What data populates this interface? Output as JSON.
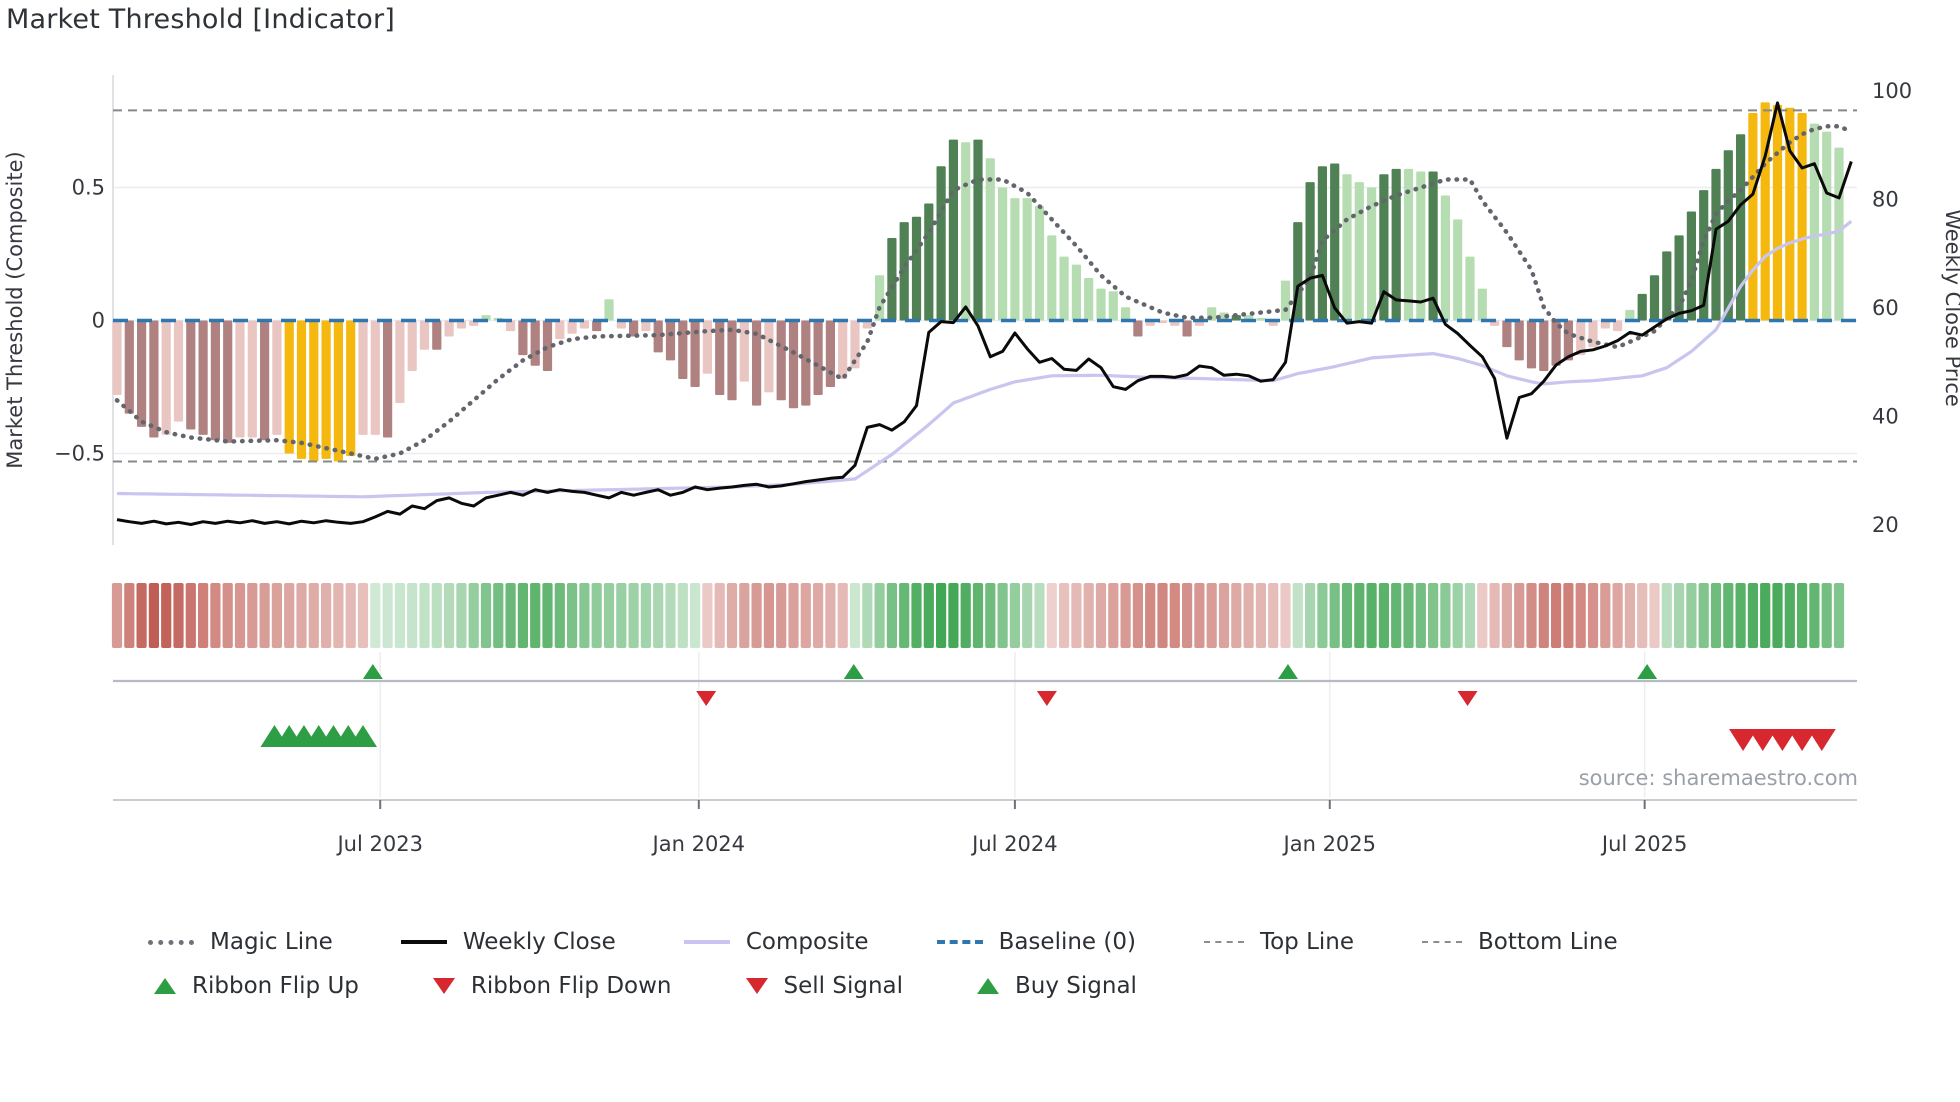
{
  "title": "Market Threshold [Indicator]",
  "source": "source: sharemaestro.com",
  "axes": {
    "left": {
      "title": "Market Threshold (Composite)",
      "ticks": [
        {
          "v": 0.5,
          "label": "0.5"
        },
        {
          "v": 0.0,
          "label": "0"
        },
        {
          "v": -0.5,
          "label": "−0.5"
        }
      ]
    },
    "right": {
      "title": "Weekly Close Price",
      "ticks": [
        {
          "v": 100,
          "label": "100"
        },
        {
          "v": 80,
          "label": "80"
        },
        {
          "v": 60,
          "label": "60"
        },
        {
          "v": 40,
          "label": "40"
        },
        {
          "v": 20,
          "label": "20"
        }
      ]
    },
    "x": {
      "ticks": [
        {
          "week": 21.4,
          "label": "Jul 2023"
        },
        {
          "week": 47.3,
          "label": "Jan 2024"
        },
        {
          "week": 73.0,
          "label": "Jul 2024"
        },
        {
          "week": 98.6,
          "label": "Jan 2025"
        },
        {
          "week": 124.2,
          "label": "Jul 2025"
        }
      ]
    }
  },
  "legend": {
    "row1": [
      {
        "name": "magic-line",
        "label": "Magic Line",
        "swatch": "dotted",
        "color": "#6f7379"
      },
      {
        "name": "weekly-close",
        "label": "Weekly Close",
        "swatch": "line",
        "color": "#0b0b0b"
      },
      {
        "name": "composite",
        "label": "Composite",
        "swatch": "line",
        "color": "#c9c5f0"
      },
      {
        "name": "baseline",
        "label": "Baseline (0)",
        "swatch": "dashed",
        "color": "#2f77b0"
      },
      {
        "name": "top-line",
        "label": "Top Line",
        "swatch": "thin-dashed",
        "color": "#8a8d92"
      },
      {
        "name": "bottom-line",
        "label": "Bottom Line",
        "swatch": "thin-dashed",
        "color": "#8a8d92"
      }
    ],
    "row2": [
      {
        "name": "ribbon-flip-up",
        "label": "Ribbon Flip Up",
        "swatch": "tri-up",
        "color": "#2e9e44"
      },
      {
        "name": "ribbon-flip-down",
        "label": "Ribbon Flip Down",
        "swatch": "tri-down",
        "color": "#d7282f"
      },
      {
        "name": "sell-signal",
        "label": "Sell Signal",
        "swatch": "tri-down",
        "color": "#d7282f"
      },
      {
        "name": "buy-signal",
        "label": "Buy Signal",
        "swatch": "tri-up",
        "color": "#2e9e44"
      }
    ]
  },
  "chart_data": {
    "type": "bar",
    "x_unit": "weekly",
    "n_weeks": 141,
    "left_axis_range": [
      -0.84,
      0.92
    ],
    "right_axis_range": [
      16,
      103
    ],
    "baseline": 0,
    "top_line": 0.79,
    "bottom_line": -0.53,
    "bar_color_legend": {
      "p": "light-pink-negative",
      "m": "mauve-negative",
      "y": "gold-signal",
      "g": "light-green-positive",
      "G": "dark-green-positive"
    },
    "bar_colors": {
      "p": "#eac6c3",
      "m": "#b08181",
      "y": "#f5b80e",
      "g": "#b6ddb2",
      "G": "#4f8155"
    },
    "bars": [
      [
        -0.28,
        "p"
      ],
      [
        -0.35,
        "m"
      ],
      [
        -0.4,
        "m"
      ],
      [
        -0.44,
        "m"
      ],
      [
        -0.43,
        "p"
      ],
      [
        -0.38,
        "p"
      ],
      [
        -0.41,
        "m"
      ],
      [
        -0.43,
        "m"
      ],
      [
        -0.45,
        "m"
      ],
      [
        -0.46,
        "m"
      ],
      [
        -0.44,
        "p"
      ],
      [
        -0.44,
        "p"
      ],
      [
        -0.45,
        "m"
      ],
      [
        -0.43,
        "p"
      ],
      [
        -0.5,
        "y"
      ],
      [
        -0.52,
        "y"
      ],
      [
        -0.53,
        "y"
      ],
      [
        -0.52,
        "y"
      ],
      [
        -0.53,
        "y"
      ],
      [
        -0.51,
        "y"
      ],
      [
        -0.43,
        "p"
      ],
      [
        -0.43,
        "p"
      ],
      [
        -0.44,
        "m"
      ],
      [
        -0.31,
        "p"
      ],
      [
        -0.19,
        "p"
      ],
      [
        -0.11,
        "p"
      ],
      [
        -0.11,
        "m"
      ],
      [
        -0.06,
        "p"
      ],
      [
        -0.03,
        "p"
      ],
      [
        -0.02,
        "p"
      ],
      [
        0.02,
        "g"
      ],
      [
        0.01,
        "g"
      ],
      [
        -0.04,
        "p"
      ],
      [
        -0.13,
        "m"
      ],
      [
        -0.17,
        "m"
      ],
      [
        -0.19,
        "m"
      ],
      [
        -0.07,
        "p"
      ],
      [
        -0.05,
        "p"
      ],
      [
        -0.03,
        "p"
      ],
      [
        -0.04,
        "m"
      ],
      [
        0.08,
        "g"
      ],
      [
        -0.03,
        "p"
      ],
      [
        -0.06,
        "m"
      ],
      [
        -0.04,
        "p"
      ],
      [
        -0.12,
        "m"
      ],
      [
        -0.15,
        "m"
      ],
      [
        -0.22,
        "m"
      ],
      [
        -0.25,
        "m"
      ],
      [
        -0.2,
        "p"
      ],
      [
        -0.28,
        "m"
      ],
      [
        -0.3,
        "m"
      ],
      [
        -0.23,
        "p"
      ],
      [
        -0.32,
        "m"
      ],
      [
        -0.27,
        "p"
      ],
      [
        -0.3,
        "m"
      ],
      [
        -0.33,
        "m"
      ],
      [
        -0.32,
        "m"
      ],
      [
        -0.28,
        "m"
      ],
      [
        -0.25,
        "m"
      ],
      [
        -0.22,
        "p"
      ],
      [
        -0.18,
        "p"
      ],
      [
        -0.03,
        "p"
      ],
      [
        0.17,
        "g"
      ],
      [
        0.31,
        "G"
      ],
      [
        0.37,
        "G"
      ],
      [
        0.39,
        "G"
      ],
      [
        0.44,
        "G"
      ],
      [
        0.58,
        "G"
      ],
      [
        0.68,
        "G"
      ],
      [
        0.67,
        "g"
      ],
      [
        0.68,
        "G"
      ],
      [
        0.61,
        "g"
      ],
      [
        0.5,
        "g"
      ],
      [
        0.46,
        "g"
      ],
      [
        0.46,
        "g"
      ],
      [
        0.43,
        "g"
      ],
      [
        0.32,
        "g"
      ],
      [
        0.24,
        "g"
      ],
      [
        0.21,
        "g"
      ],
      [
        0.16,
        "g"
      ],
      [
        0.12,
        "g"
      ],
      [
        0.11,
        "g"
      ],
      [
        0.05,
        "g"
      ],
      [
        -0.06,
        "m"
      ],
      [
        -0.02,
        "p"
      ],
      [
        -0.01,
        "p"
      ],
      [
        -0.02,
        "p"
      ],
      [
        -0.06,
        "m"
      ],
      [
        -0.02,
        "p"
      ],
      [
        0.05,
        "g"
      ],
      [
        0.03,
        "g"
      ],
      [
        0.02,
        "G"
      ],
      [
        0.02,
        "g"
      ],
      [
        0.01,
        "g"
      ],
      [
        -0.02,
        "p"
      ],
      [
        0.15,
        "g"
      ],
      [
        0.37,
        "G"
      ],
      [
        0.52,
        "G"
      ],
      [
        0.58,
        "G"
      ],
      [
        0.59,
        "G"
      ],
      [
        0.55,
        "g"
      ],
      [
        0.52,
        "g"
      ],
      [
        0.5,
        "g"
      ],
      [
        0.55,
        "G"
      ],
      [
        0.57,
        "G"
      ],
      [
        0.57,
        "g"
      ],
      [
        0.56,
        "g"
      ],
      [
        0.56,
        "G"
      ],
      [
        0.47,
        "g"
      ],
      [
        0.38,
        "g"
      ],
      [
        0.24,
        "g"
      ],
      [
        0.12,
        "g"
      ],
      [
        -0.02,
        "p"
      ],
      [
        -0.1,
        "m"
      ],
      [
        -0.15,
        "m"
      ],
      [
        -0.18,
        "m"
      ],
      [
        -0.19,
        "m"
      ],
      [
        -0.17,
        "m"
      ],
      [
        -0.15,
        "m"
      ],
      [
        -0.13,
        "p"
      ],
      [
        -0.1,
        "p"
      ],
      [
        -0.03,
        "p"
      ],
      [
        -0.04,
        "p"
      ],
      [
        0.04,
        "g"
      ],
      [
        0.1,
        "G"
      ],
      [
        0.17,
        "G"
      ],
      [
        0.26,
        "G"
      ],
      [
        0.32,
        "G"
      ],
      [
        0.41,
        "G"
      ],
      [
        0.49,
        "G"
      ],
      [
        0.57,
        "G"
      ],
      [
        0.64,
        "G"
      ],
      [
        0.7,
        "G"
      ],
      [
        0.78,
        "y"
      ],
      [
        0.82,
        "y"
      ],
      [
        0.81,
        "y"
      ],
      [
        0.8,
        "y"
      ],
      [
        0.78,
        "y"
      ],
      [
        0.74,
        "g"
      ],
      [
        0.71,
        "g"
      ],
      [
        0.65,
        "g"
      ]
    ],
    "weekly_close": [
      21,
      20.6,
      20.3,
      20.7,
      20.2,
      20.5,
      20.1,
      20.6,
      20.3,
      20.7,
      20.4,
      20.8,
      20.3,
      20.6,
      20.2,
      20.7,
      20.4,
      20.8,
      20.5,
      20.3,
      20.6,
      21.5,
      22.5,
      22,
      23.5,
      23,
      24.5,
      25,
      24,
      23.5,
      25,
      25.5,
      26,
      25.5,
      26.5,
      26,
      26.5,
      26.2,
      26,
      25.5,
      25,
      26,
      25.5,
      26,
      26.5,
      25.5,
      26,
      27,
      26.5,
      26.8,
      27,
      27.3,
      27.5,
      27,
      27.2,
      27.6,
      28,
      28.3,
      28.6,
      28.8,
      31,
      38,
      38.5,
      37.5,
      39,
      42,
      55.5,
      57.5,
      57.3,
      60.2,
      56.7,
      51,
      52,
      55.4,
      52.5,
      50,
      50.7,
      48.7,
      48.5,
      50.6,
      49,
      45.5,
      45,
      46.6,
      47.4,
      47.4,
      47.2,
      47.7,
      49.3,
      49,
      47.6,
      47.8,
      47.5,
      46.5,
      46.8,
      50,
      64,
      65.5,
      66,
      60,
      57.2,
      57.5,
      57.2,
      63,
      61.5,
      61.3,
      61.1,
      61.8,
      57,
      55.3,
      53.1,
      51,
      47,
      36,
      43.5,
      44.2,
      46.5,
      49.5,
      51,
      52,
      52.3,
      53,
      54,
      55.5,
      55,
      56.5,
      58,
      59,
      59.5,
      60.5,
      74.5,
      76,
      79,
      81,
      88,
      97.8,
      89,
      85.8,
      86.6,
      81.2,
      80.3,
      87
    ],
    "magic_line_keyframes": [
      [
        0,
        -0.3
      ],
      [
        2,
        -0.38
      ],
      [
        4,
        -0.42
      ],
      [
        6,
        -0.44
      ],
      [
        9,
        -0.455
      ],
      [
        13,
        -0.45
      ],
      [
        15,
        -0.46
      ],
      [
        18,
        -0.49
      ],
      [
        21,
        -0.52
      ],
      [
        23,
        -0.5
      ],
      [
        25,
        -0.45
      ],
      [
        27,
        -0.38
      ],
      [
        29,
        -0.3
      ],
      [
        31,
        -0.22
      ],
      [
        33,
        -0.15
      ],
      [
        35,
        -0.1
      ],
      [
        37,
        -0.07
      ],
      [
        39,
        -0.06
      ],
      [
        44,
        -0.055
      ],
      [
        48,
        -0.04
      ],
      [
        50,
        -0.035
      ],
      [
        52,
        -0.05
      ],
      [
        55,
        -0.12
      ],
      [
        57,
        -0.17
      ],
      [
        59,
        -0.22
      ],
      [
        61,
        -0.08
      ],
      [
        62,
        0.05
      ],
      [
        64,
        0.2
      ],
      [
        66,
        0.33
      ],
      [
        68,
        0.49
      ],
      [
        70,
        0.53
      ],
      [
        72,
        0.53
      ],
      [
        74,
        0.48
      ],
      [
        76,
        0.38
      ],
      [
        78,
        0.28
      ],
      [
        80,
        0.17
      ],
      [
        82,
        0.09
      ],
      [
        85,
        0.03
      ],
      [
        87,
        0.01
      ],
      [
        89,
        0.01
      ],
      [
        91,
        0.02
      ],
      [
        93,
        0.03
      ],
      [
        95,
        0.04
      ],
      [
        97,
        0.16
      ],
      [
        98,
        0.3
      ],
      [
        100,
        0.38
      ],
      [
        102,
        0.43
      ],
      [
        104,
        0.47
      ],
      [
        106,
        0.5
      ],
      [
        108,
        0.53
      ],
      [
        110,
        0.53
      ],
      [
        111,
        0.45
      ],
      [
        113,
        0.33
      ],
      [
        115,
        0.19
      ],
      [
        116,
        0.05
      ],
      [
        117,
        -0.01
      ],
      [
        118,
        -0.05
      ],
      [
        120,
        -0.08
      ],
      [
        122,
        -0.1
      ],
      [
        123,
        -0.08
      ],
      [
        125,
        -0.04
      ],
      [
        126,
        0.01
      ],
      [
        127,
        0.05
      ],
      [
        128,
        0.15
      ],
      [
        129,
        0.3
      ],
      [
        130,
        0.4
      ],
      [
        131,
        0.45
      ],
      [
        132,
        0.49
      ],
      [
        133,
        0.54
      ],
      [
        134,
        0.59
      ],
      [
        135,
        0.63
      ],
      [
        136,
        0.67
      ],
      [
        137,
        0.7
      ],
      [
        138,
        0.72
      ],
      [
        139,
        0.73
      ],
      [
        140,
        0.73
      ],
      [
        141,
        0.71
      ]
    ],
    "composite_keyframes": [
      [
        0,
        25.8
      ],
      [
        10,
        25.5
      ],
      [
        20,
        25.2
      ],
      [
        30,
        26.0
      ],
      [
        40,
        26.5
      ],
      [
        50,
        27.0
      ],
      [
        55,
        27.5
      ],
      [
        60,
        28.5
      ],
      [
        63,
        33.0
      ],
      [
        66,
        38.5
      ],
      [
        68,
        42.5
      ],
      [
        71,
        45.0
      ],
      [
        73,
        46.4
      ],
      [
        76,
        47.5
      ],
      [
        80,
        47.6
      ],
      [
        84,
        47.2
      ],
      [
        88,
        47.0
      ],
      [
        94,
        46.6
      ],
      [
        96,
        47.9
      ],
      [
        99,
        49.2
      ],
      [
        102,
        50.8
      ],
      [
        105,
        51.3
      ],
      [
        107,
        51.6
      ],
      [
        109,
        50.7
      ],
      [
        111,
        49.4
      ],
      [
        113,
        47.5
      ],
      [
        115,
        46.4
      ],
      [
        116,
        46.0
      ],
      [
        118,
        46.4
      ],
      [
        120,
        46.6
      ],
      [
        124,
        47.5
      ],
      [
        126,
        49.0
      ],
      [
        128,
        52.0
      ],
      [
        130,
        56.0
      ],
      [
        131,
        60.0
      ],
      [
        132,
        64.0
      ],
      [
        133,
        67.0
      ],
      [
        134,
        69.5
      ],
      [
        135,
        71.0
      ],
      [
        136,
        72.0
      ],
      [
        137,
        72.7
      ],
      [
        138,
        73.3
      ],
      [
        139,
        73.6
      ],
      [
        140,
        74.2
      ],
      [
        141,
        76.0
      ]
    ],
    "ribbon": [
      -0.5,
      -0.65,
      -0.8,
      -0.88,
      -0.85,
      -0.8,
      -0.73,
      -0.66,
      -0.6,
      -0.56,
      -0.52,
      -0.5,
      -0.48,
      -0.45,
      -0.42,
      -0.4,
      -0.38,
      -0.36,
      -0.33,
      -0.3,
      -0.26,
      0.12,
      0.14,
      0.16,
      0.18,
      0.2,
      0.24,
      0.28,
      0.34,
      0.45,
      0.55,
      0.62,
      0.68,
      0.72,
      0.74,
      0.72,
      0.66,
      0.58,
      0.52,
      0.47,
      0.44,
      0.42,
      0.4,
      0.37,
      0.33,
      0.28,
      0.22,
      0.16,
      -0.2,
      -0.3,
      -0.38,
      -0.44,
      -0.5,
      -0.52,
      -0.5,
      -0.46,
      -0.42,
      -0.4,
      -0.35,
      -0.3,
      0.15,
      0.3,
      0.45,
      0.6,
      0.7,
      0.8,
      0.85,
      0.9,
      0.88,
      0.82,
      0.74,
      0.65,
      0.55,
      0.45,
      0.35,
      0.25,
      -0.15,
      -0.25,
      -0.3,
      -0.35,
      -0.4,
      -0.45,
      -0.5,
      -0.55,
      -0.6,
      -0.62,
      -0.6,
      -0.56,
      -0.52,
      -0.48,
      -0.44,
      -0.4,
      -0.36,
      -0.32,
      -0.28,
      -0.2,
      0.2,
      0.35,
      0.5,
      0.6,
      0.7,
      0.75,
      0.78,
      0.76,
      0.72,
      0.68,
      0.62,
      0.56,
      0.5,
      0.4,
      0.3,
      -0.2,
      -0.3,
      -0.4,
      -0.5,
      -0.58,
      -0.64,
      -0.68,
      -0.66,
      -0.6,
      -0.55,
      -0.48,
      -0.42,
      -0.35,
      -0.28,
      -0.2,
      0.25,
      0.35,
      0.45,
      0.55,
      0.65,
      0.72,
      0.78,
      0.82,
      0.85,
      0.85,
      0.82,
      0.78,
      0.72,
      0.62,
      0.55
    ],
    "signals": {
      "ribbon_flip_up_weeks": [
        20.8,
        59.9,
        95.2,
        124.4
      ],
      "ribbon_flip_down_weeks": [
        47.9,
        75.6,
        109.8
      ],
      "buy_signal_weeks": [
        12.8,
        14.0,
        15.2,
        16.4,
        17.6,
        18.8,
        20.0
      ],
      "sell_signal_weeks": [
        132.2,
        133.8,
        135.4,
        137.0,
        138.6
      ]
    },
    "signal_colors": {
      "up": "#2e9e44",
      "down": "#d7282f"
    },
    "line_colors": {
      "magic": "#63666d",
      "close": "#0a0a0a",
      "composite": "#c8c5ef",
      "baseline": "#2f77b0",
      "top_bottom": "#85888d"
    }
  }
}
